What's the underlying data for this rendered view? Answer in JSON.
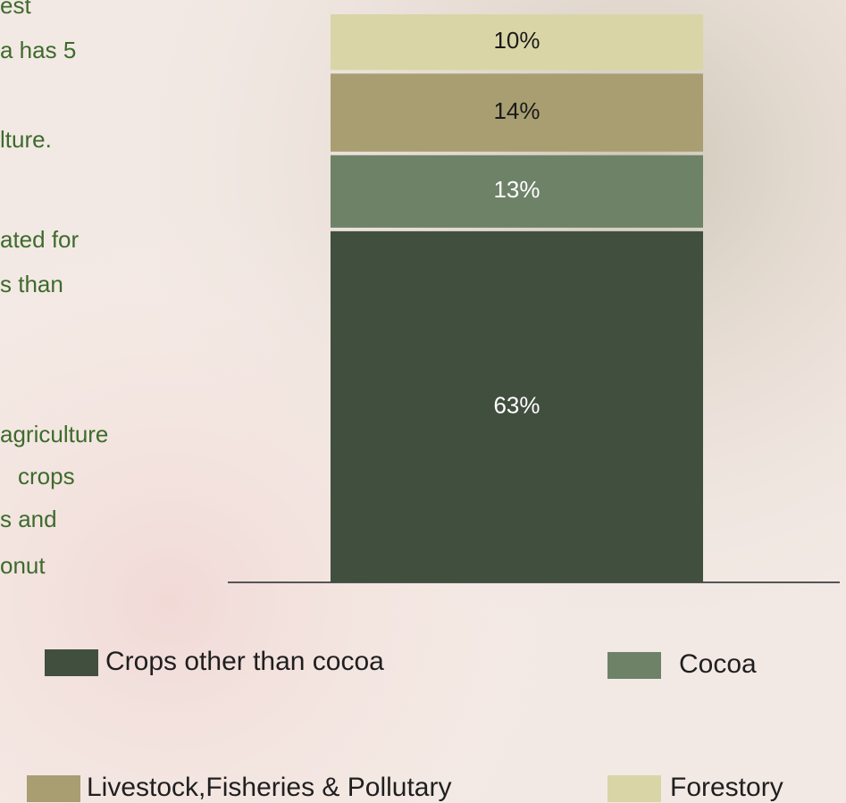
{
  "side_text": [
    "est",
    "a has 5",
    "lture.",
    "ated for",
    "s than",
    "agriculture",
    "crops",
    "s and",
    "onut"
  ],
  "chart_data": {
    "type": "bar",
    "stacked": true,
    "categories": [
      null
    ],
    "series": [
      {
        "name": "Crops other than cocoa",
        "color": "#414f3f",
        "values": [
          63
        ],
        "value_labels": [
          "63%"
        ]
      },
      {
        "name": "Cocoa",
        "color": "#6e8268",
        "values": [
          13
        ],
        "value_labels": [
          "13%"
        ]
      },
      {
        "name": "Livestock,Fisheries & Pollutary",
        "color": "#a89e72",
        "values": [
          14
        ],
        "value_labels": [
          "14%"
        ]
      },
      {
        "name": "Forestory",
        "color": "#d9d5a6",
        "values": [
          10
        ],
        "value_labels": [
          "10%"
        ]
      }
    ]
  }
}
